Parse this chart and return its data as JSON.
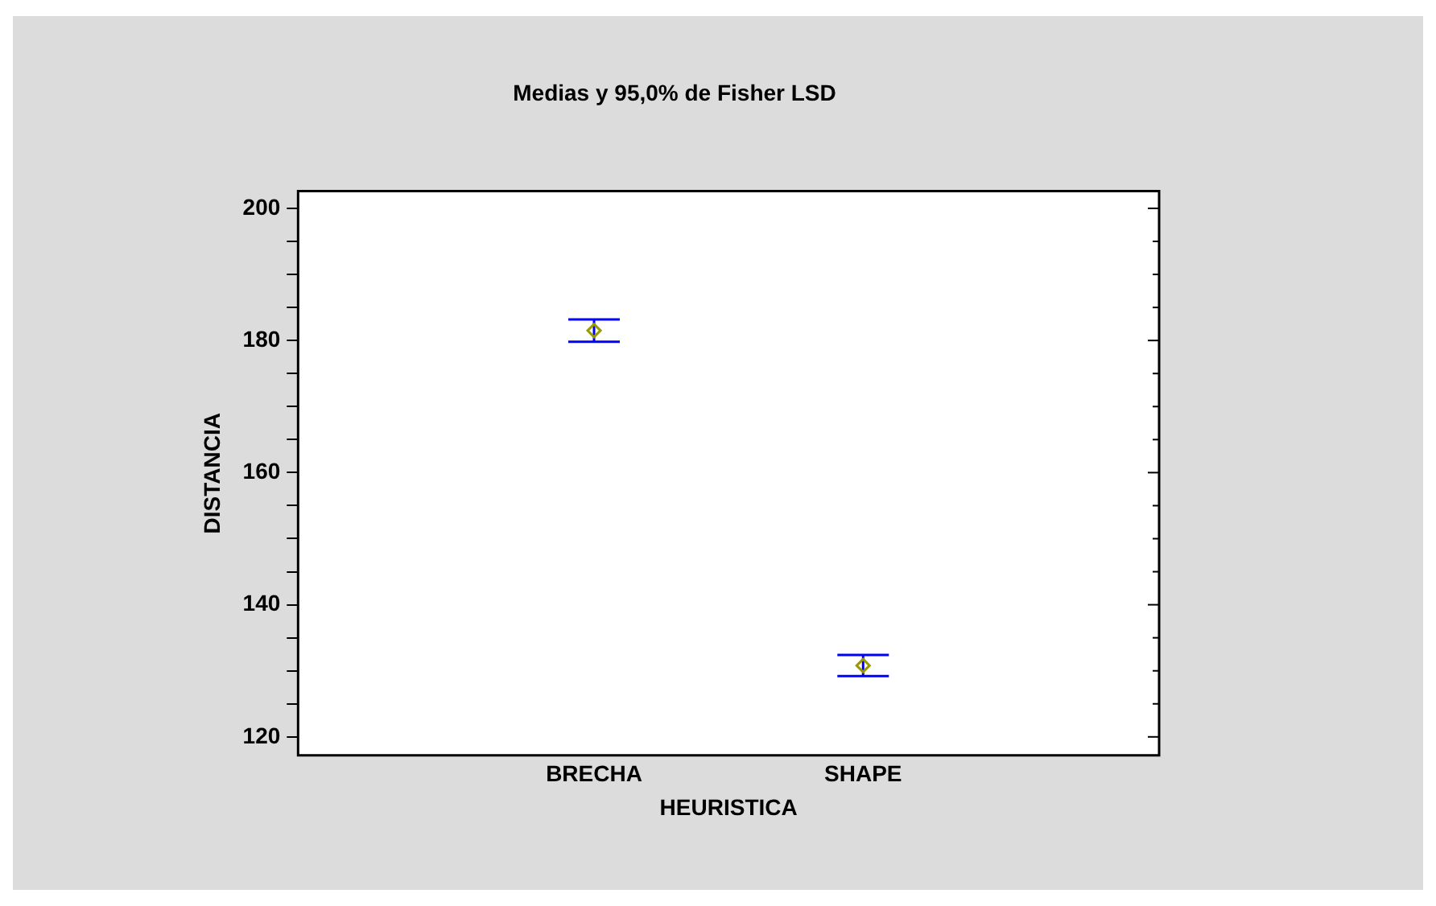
{
  "chart_data": {
    "type": "scatter",
    "title": "Medias y 95,0% de Fisher LSD",
    "xlabel": "HEURISTICA",
    "ylabel": "DISTANCIA",
    "categories": [
      "BRECHA",
      "SHAPE"
    ],
    "values": [
      181.5,
      130.8
    ],
    "errors": [
      1.7,
      1.6
    ],
    "color": "#999900",
    "marker": "diamond",
    "ylim": [
      117.2,
      202.6
    ],
    "yticks": [
      120,
      {
        "value": 125,
        "label": null
      },
      140,
      {
        "value": 130,
        "label": null
      },
      {
        "value": 135,
        "label": null
      },
      {
        "value": 145,
        "label": null
      },
      {
        "value": 150,
        "label": null
      },
      {
        "value": 155,
        "label": null
      },
      160,
      {
        "value": 165,
        "label": null
      },
      {
        "value": 170,
        "label": null
      },
      {
        "value": 175,
        "label": null
      },
      180,
      {
        "value": 185,
        "label": null
      },
      {
        "value": 190,
        "label": null
      },
      {
        "value": 195,
        "label": null
      },
      200
    ],
    "grid": false
  }
}
